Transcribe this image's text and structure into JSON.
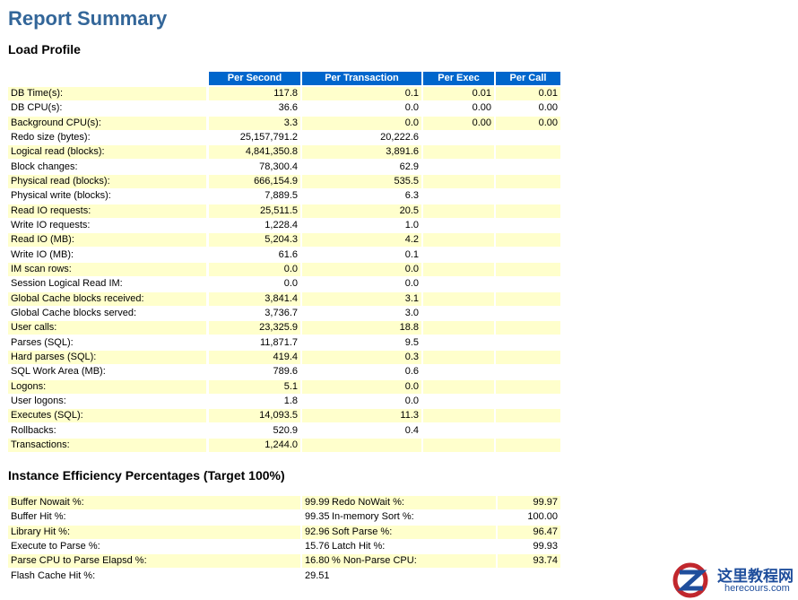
{
  "header": {
    "title": "Report Summary"
  },
  "load_profile": {
    "title": "Load Profile",
    "columns": [
      "Per Second",
      "Per Transaction",
      "Per Exec",
      "Per Call"
    ],
    "rows": [
      [
        "DB Time(s):",
        "117.8",
        "0.1",
        "0.01",
        "0.01"
      ],
      [
        "DB CPU(s):",
        "36.6",
        "0.0",
        "0.00",
        "0.00"
      ],
      [
        "Background CPU(s):",
        "3.3",
        "0.0",
        "0.00",
        "0.00"
      ],
      [
        "Redo size (bytes):",
        "25,157,791.2",
        "20,222.6"
      ],
      [
        "Logical read (blocks):",
        "4,841,350.8",
        "3,891.6"
      ],
      [
        "Block changes:",
        "78,300.4",
        "62.9"
      ],
      [
        "Physical read (blocks):",
        "666,154.9",
        "535.5"
      ],
      [
        "Physical write (blocks):",
        "7,889.5",
        "6.3"
      ],
      [
        "Read IO requests:",
        "25,511.5",
        "20.5"
      ],
      [
        "Write IO requests:",
        "1,228.4",
        "1.0"
      ],
      [
        "Read IO (MB):",
        "5,204.3",
        "4.2"
      ],
      [
        "Write IO (MB):",
        "61.6",
        "0.1"
      ],
      [
        "IM scan rows:",
        "0.0",
        "0.0"
      ],
      [
        "Session Logical Read IM:",
        "0.0",
        "0.0"
      ],
      [
        "Global Cache blocks received:",
        "3,841.4",
        "3.1"
      ],
      [
        "Global Cache blocks served:",
        "3,736.7",
        "3.0"
      ],
      [
        "User calls:",
        "23,325.9",
        "18.8"
      ],
      [
        "Parses (SQL):",
        "11,871.7",
        "9.5"
      ],
      [
        "Hard parses (SQL):",
        "419.4",
        "0.3"
      ],
      [
        "SQL Work Area (MB):",
        "789.6",
        "0.6"
      ],
      [
        "Logons:",
        "5.1",
        "0.0"
      ],
      [
        "User logons:",
        "1.8",
        "0.0"
      ],
      [
        "Executes (SQL):",
        "14,093.5",
        "11.3"
      ],
      [
        "Rollbacks:",
        "520.9",
        "0.4"
      ],
      [
        "Transactions:",
        "1,244.0"
      ]
    ]
  },
  "efficiency": {
    "title": "Instance Efficiency Percentages (Target 100%)",
    "rows": [
      [
        "Buffer Nowait %:",
        "99.99",
        "Redo NoWait %:",
        "99.97"
      ],
      [
        "Buffer Hit %:",
        "99.35",
        "In-memory Sort %:",
        "100.00"
      ],
      [
        "Library Hit %:",
        "92.96",
        "Soft Parse %:",
        "96.47"
      ],
      [
        "Execute to Parse %:",
        "15.76",
        "Latch Hit %:",
        "99.93"
      ],
      [
        "Parse CPU to Parse Elapsd %:",
        "16.80",
        "% Non-Parse CPU:",
        "93.74"
      ],
      [
        "Flash Cache Hit %:",
        "29.51"
      ]
    ]
  },
  "watermark": {
    "name": "这里教程网",
    "url": "herecours.com"
  }
}
